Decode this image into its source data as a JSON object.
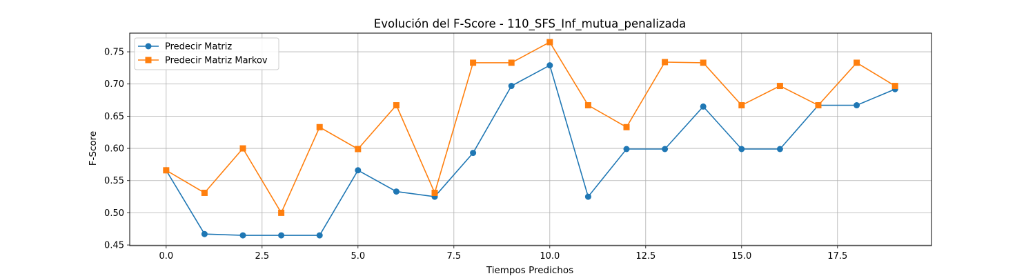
{
  "chart_data": {
    "type": "line",
    "title": "Evolución del F-Score - 110_SFS_Inf_mutua_penalizada",
    "xlabel": "Tiempos Predichos",
    "ylabel": "F-Score",
    "xlim": [
      -0.95,
      19.95
    ],
    "ylim": [
      0.449,
      0.779
    ],
    "xticks": [
      0.0,
      2.5,
      5.0,
      7.5,
      10.0,
      12.5,
      15.0,
      17.5
    ],
    "xtick_labels": [
      "0.0",
      "2.5",
      "5.0",
      "7.5",
      "10.0",
      "12.5",
      "15.0",
      "17.5"
    ],
    "yticks": [
      0.45,
      0.5,
      0.55,
      0.6,
      0.65,
      0.7,
      0.75
    ],
    "ytick_labels": [
      "0.45",
      "0.50",
      "0.55",
      "0.60",
      "0.65",
      "0.70",
      "0.75"
    ],
    "grid": true,
    "legend": "top-left",
    "x": [
      0,
      1,
      2,
      3,
      4,
      5,
      6,
      7,
      8,
      9,
      10,
      11,
      12,
      13,
      14,
      15,
      16,
      17,
      18,
      19
    ],
    "series": [
      {
        "name": "Predecir Matriz",
        "color": "#1f77b4",
        "marker": "circle",
        "values": [
          0.566,
          0.467,
          0.465,
          0.465,
          0.465,
          0.566,
          0.533,
          0.525,
          0.593,
          0.697,
          0.729,
          0.525,
          0.599,
          0.599,
          0.665,
          0.599,
          0.599,
          0.667,
          0.667,
          0.692
        ]
      },
      {
        "name": "Predecir Matriz Markov",
        "color": "#ff7f0e",
        "marker": "square",
        "values": [
          0.566,
          0.531,
          0.6,
          0.5,
          0.633,
          0.599,
          0.667,
          0.531,
          0.733,
          0.733,
          0.765,
          0.667,
          0.633,
          0.734,
          0.733,
          0.667,
          0.697,
          0.667,
          0.733,
          0.697
        ]
      }
    ]
  }
}
